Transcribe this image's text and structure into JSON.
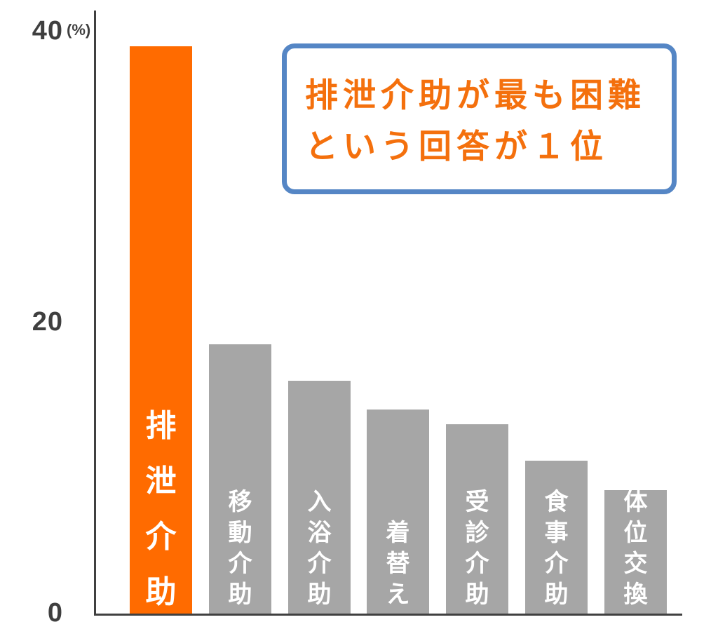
{
  "colors": {
    "background": "#ffffff",
    "axis": "#404040",
    "tick_text": "#3f3f3f",
    "bar_gray": "#a6a6a6",
    "bar_highlight": "#ff6b00",
    "bar_label_text": "#ffffff",
    "callout_border": "#5586c5",
    "callout_text": "#f4700d"
  },
  "y_axis": {
    "unit_label": "(%)",
    "tick_labels": [
      "40",
      "20",
      "0"
    ]
  },
  "callout": {
    "line1": "排泄介助が最も困難",
    "line2": "という回答が１位"
  },
  "chart_data": {
    "type": "bar",
    "categories": [
      "排泄介助",
      "移動介助",
      "入浴介助",
      "着替え",
      "受診介助",
      "食事介助",
      "体位交換"
    ],
    "values": [
      39,
      18.5,
      16,
      14,
      13,
      10.5,
      8.5
    ],
    "title": "",
    "xlabel": "",
    "ylabel": "(%)",
    "ylim": [
      0,
      40
    ],
    "yticks": [
      40,
      20,
      0
    ],
    "grid": false,
    "legend": false,
    "highlight_index": 0,
    "highlight_color": "#ff6b00",
    "bar_color": "#a6a6a6",
    "annotation": "排泄介助が最も困難という回答が１位"
  }
}
